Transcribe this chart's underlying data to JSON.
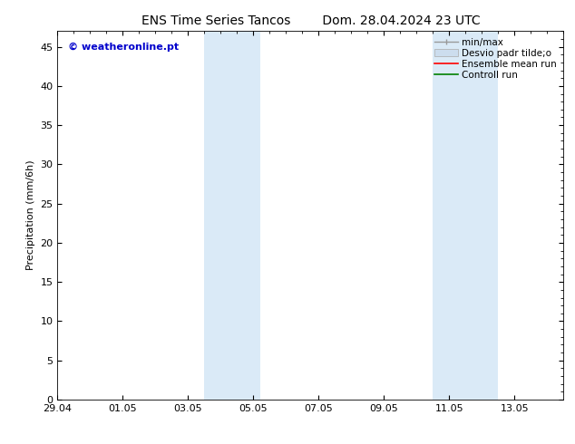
{
  "title": "ENS Time Series Tancos        Dom. 28.04.2024 23 UTC",
  "ylabel": "Precipitation (mm/6h)",
  "ylim": [
    0,
    47
  ],
  "yticks": [
    0,
    5,
    10,
    15,
    20,
    25,
    30,
    35,
    40,
    45
  ],
  "xtick_labels": [
    "29.04",
    "01.05",
    "03.05",
    "05.05",
    "07.05",
    "09.05",
    "11.05",
    "13.05"
  ],
  "xtick_positions": [
    0,
    2,
    4,
    6,
    8,
    10,
    12,
    14
  ],
  "xlim": [
    0,
    15.5
  ],
  "shaded_regions": [
    {
      "start": 4.5,
      "end": 6.2
    },
    {
      "start": 11.5,
      "end": 13.5
    }
  ],
  "shade_color": "#daeaf7",
  "background_color": "#ffffff",
  "watermark_text": "© weatheronline.pt",
  "watermark_color": "#0000cc",
  "title_fontsize": 10,
  "axis_label_fontsize": 8,
  "tick_fontsize": 8,
  "legend_fontsize": 7.5
}
